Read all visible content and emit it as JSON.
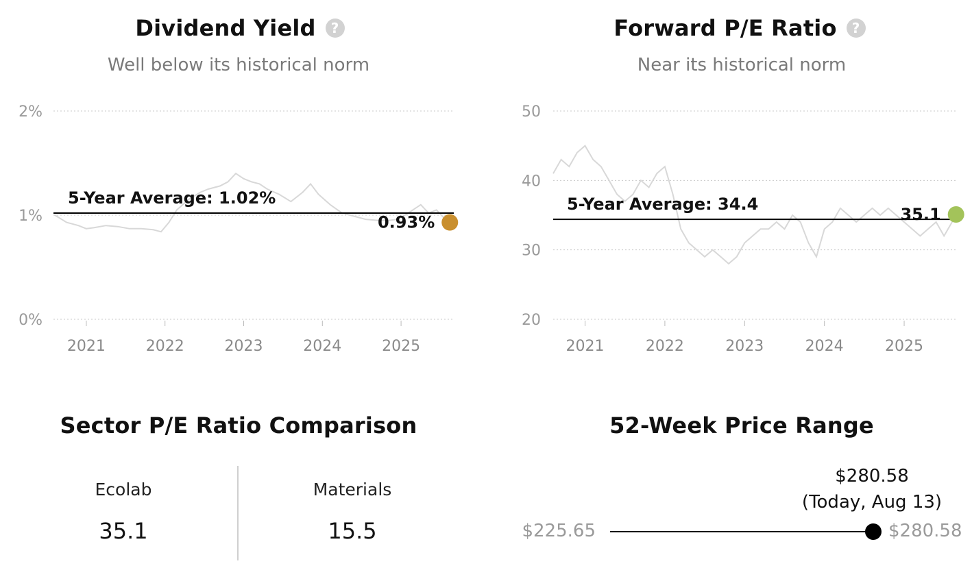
{
  "dividend_yield": {
    "title": "Dividend Yield",
    "help_icon": "question-circle-icon",
    "subtitle": "Well below its historical norm",
    "colors": {
      "line": "#d8d8d8",
      "average": "#000000",
      "dot": "#c98f2e",
      "grid": "#c9c9c9"
    }
  },
  "forward_pe": {
    "title": "Forward P/E Ratio",
    "help_icon": "question-circle-icon",
    "subtitle": "Near its historical norm",
    "colors": {
      "line": "#d8d8d8",
      "average": "#000000",
      "dot": "#a3c35a",
      "grid": "#c9c9c9"
    }
  },
  "sector_comparison": {
    "title": "Sector P/E Ratio Comparison",
    "left": {
      "label": "Ecolab",
      "value": "35.1"
    },
    "right": {
      "label": "Materials",
      "value": "15.5"
    }
  },
  "price_range": {
    "title": "52-Week Price Range",
    "low": "$225.65",
    "high": "$280.58",
    "current_value": "$280.58",
    "current_note": "(Today, Aug 13)",
    "position_fraction": 1.0
  },
  "chart_data": [
    {
      "type": "line",
      "title": "Dividend Yield",
      "subtitle": "Well below its historical norm",
      "y_ticks": [
        "0%",
        "1%",
        "2%"
      ],
      "ylim": [
        0,
        2
      ],
      "x_ticks": [
        "2021",
        "2022",
        "2023",
        "2024",
        "2025"
      ],
      "xlim": [
        2020.6,
        2025.67
      ],
      "grid": true,
      "average": {
        "label": "5-Year Average: 1.02%",
        "value": 1.02
      },
      "current": {
        "label": "0.93%",
        "value": 0.93,
        "x": 2025.62
      },
      "series": [
        {
          "x": [
            2020.6,
            2020.75,
            2020.9,
            2021.0,
            2021.1,
            2021.25,
            2021.4,
            2021.55,
            2021.7,
            2021.85,
            2021.95,
            2022.05,
            2022.15,
            2022.3,
            2022.45,
            2022.55,
            2022.7,
            2022.8,
            2022.9,
            2023.0,
            2023.1,
            2023.2,
            2023.3,
            2023.45,
            2023.6,
            2023.75,
            2023.85,
            2023.95,
            2024.1,
            2024.25,
            2024.4,
            2024.55,
            2024.7,
            2024.85,
            2024.95,
            2025.05,
            2025.15,
            2025.25,
            2025.35,
            2025.45,
            2025.55,
            2025.62
          ],
          "y": [
            1.0,
            0.93,
            0.9,
            0.87,
            0.88,
            0.9,
            0.89,
            0.87,
            0.87,
            0.86,
            0.84,
            0.93,
            1.05,
            1.15,
            1.22,
            1.25,
            1.28,
            1.32,
            1.4,
            1.35,
            1.32,
            1.3,
            1.25,
            1.2,
            1.13,
            1.22,
            1.3,
            1.2,
            1.1,
            1.02,
            0.99,
            0.96,
            0.95,
            0.95,
            0.96,
            1.0,
            1.05,
            1.1,
            1.02,
            1.05,
            0.97,
            0.93
          ]
        }
      ]
    },
    {
      "type": "line",
      "title": "Forward P/E Ratio",
      "subtitle": "Near its historical norm",
      "y_ticks": [
        "20",
        "30",
        "40",
        "50"
      ],
      "ylim": [
        20,
        50
      ],
      "x_ticks": [
        "2021",
        "2022",
        "2023",
        "2024",
        "2025"
      ],
      "xlim": [
        2020.6,
        2025.67
      ],
      "grid": true,
      "average": {
        "label": "5-Year Average: 34.4",
        "value": 34.4
      },
      "current": {
        "label": "35.1",
        "value": 35.1,
        "x": 2025.65
      },
      "series": [
        {
          "x": [
            2020.6,
            2020.7,
            2020.8,
            2020.9,
            2021.0,
            2021.1,
            2021.2,
            2021.3,
            2021.4,
            2021.5,
            2021.6,
            2021.7,
            2021.8,
            2021.9,
            2022.0,
            2022.1,
            2022.2,
            2022.3,
            2022.4,
            2022.5,
            2022.6,
            2022.7,
            2022.8,
            2022.9,
            2023.0,
            2023.1,
            2023.2,
            2023.3,
            2023.4,
            2023.5,
            2023.6,
            2023.7,
            2023.8,
            2023.9,
            2024.0,
            2024.1,
            2024.2,
            2024.3,
            2024.4,
            2024.5,
            2024.6,
            2024.7,
            2024.8,
            2024.9,
            2025.0,
            2025.1,
            2025.2,
            2025.3,
            2025.4,
            2025.5,
            2025.6,
            2025.65
          ],
          "y": [
            41,
            43,
            42,
            44,
            45,
            43,
            42,
            40,
            38,
            37,
            38,
            40,
            39,
            41,
            42,
            38,
            33,
            31,
            30,
            29,
            30,
            29,
            28,
            29,
            31,
            32,
            33,
            33,
            34,
            33,
            35,
            34,
            31,
            29,
            33,
            34,
            36,
            35,
            34,
            35,
            36,
            35,
            36,
            35,
            34,
            33,
            32,
            33,
            34,
            32,
            34,
            35.1
          ]
        }
      ]
    }
  ]
}
